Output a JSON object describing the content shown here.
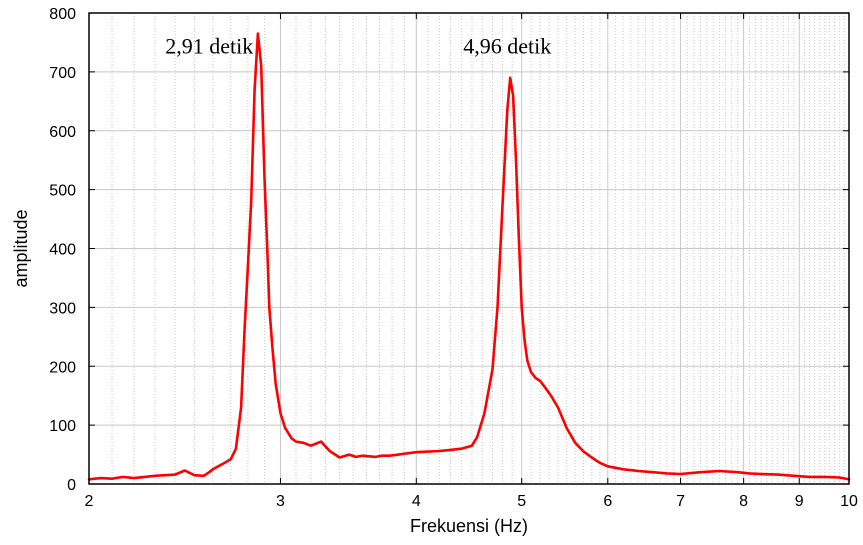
{
  "chart_data": {
    "type": "line",
    "title": "",
    "xlabel": "Frekuensi (Hz)",
    "ylabel": "amplitude",
    "xscale": "log",
    "xlim": [
      2,
      10
    ],
    "ylim": [
      0,
      800
    ],
    "grid": true,
    "legend": "none",
    "x_ticks": [
      2,
      3,
      4,
      5,
      6,
      7,
      8,
      9,
      10
    ],
    "x_tick_labels": [
      "2",
      "3",
      "4",
      "5",
      "6",
      "7",
      "8",
      "9",
      "10"
    ],
    "y_ticks": [
      0,
      100,
      200,
      300,
      400,
      500,
      600,
      700,
      800
    ],
    "y_tick_labels": [
      "0",
      "100",
      "200",
      "300",
      "400",
      "500",
      "600",
      "700",
      "800"
    ],
    "annotations": [
      {
        "text": "2,91 detik",
        "x": 2.58,
        "y": 745
      },
      {
        "text": "4,96 detik",
        "x": 4.85,
        "y": 745
      }
    ],
    "series": [
      {
        "color": "#ff0000",
        "x": [
          2.0,
          2.05,
          2.1,
          2.15,
          2.2,
          2.25,
          2.3,
          2.35,
          2.4,
          2.45,
          2.5,
          2.55,
          2.58,
          2.6,
          2.63,
          2.66,
          2.7,
          2.73,
          2.76,
          2.78,
          2.8,
          2.82,
          2.84,
          2.86,
          2.88,
          2.9,
          2.92,
          2.93,
          2.95,
          2.97,
          3.0,
          3.03,
          3.07,
          3.1,
          3.15,
          3.2,
          3.27,
          3.33,
          3.4,
          3.47,
          3.52,
          3.57,
          3.62,
          3.67,
          3.72,
          3.78,
          3.85,
          3.92,
          4.0,
          4.1,
          4.2,
          4.3,
          4.4,
          4.5,
          4.55,
          4.62,
          4.7,
          4.75,
          4.8,
          4.85,
          4.88,
          4.91,
          4.94,
          4.97,
          5.0,
          5.03,
          5.06,
          5.1,
          5.15,
          5.2,
          5.25,
          5.32,
          5.4,
          5.5,
          5.6,
          5.7,
          5.8,
          5.9,
          6.0,
          6.2,
          6.4,
          6.6,
          6.8,
          7.0,
          7.3,
          7.6,
          7.9,
          8.1,
          8.3,
          8.6,
          8.9,
          9.2,
          9.5,
          9.8,
          10.0
        ],
        "y": [
          8,
          10,
          9,
          12,
          10,
          12,
          14,
          15,
          16,
          23,
          15,
          14,
          20,
          25,
          30,
          35,
          42,
          60,
          130,
          260,
          370,
          480,
          670,
          765,
          710,
          520,
          380,
          300,
          230,
          170,
          120,
          95,
          78,
          72,
          70,
          65,
          72,
          56,
          45,
          50,
          46,
          48,
          47,
          46,
          48,
          48,
          50,
          52,
          54,
          55,
          56,
          58,
          60,
          65,
          80,
          120,
          195,
          300,
          470,
          635,
          690,
          660,
          550,
          420,
          300,
          245,
          210,
          190,
          180,
          175,
          165,
          150,
          130,
          95,
          70,
          55,
          45,
          36,
          30,
          25,
          22,
          20,
          18,
          17,
          20,
          22,
          20,
          18,
          17,
          16,
          14,
          12,
          12,
          11,
          8
        ]
      }
    ]
  }
}
